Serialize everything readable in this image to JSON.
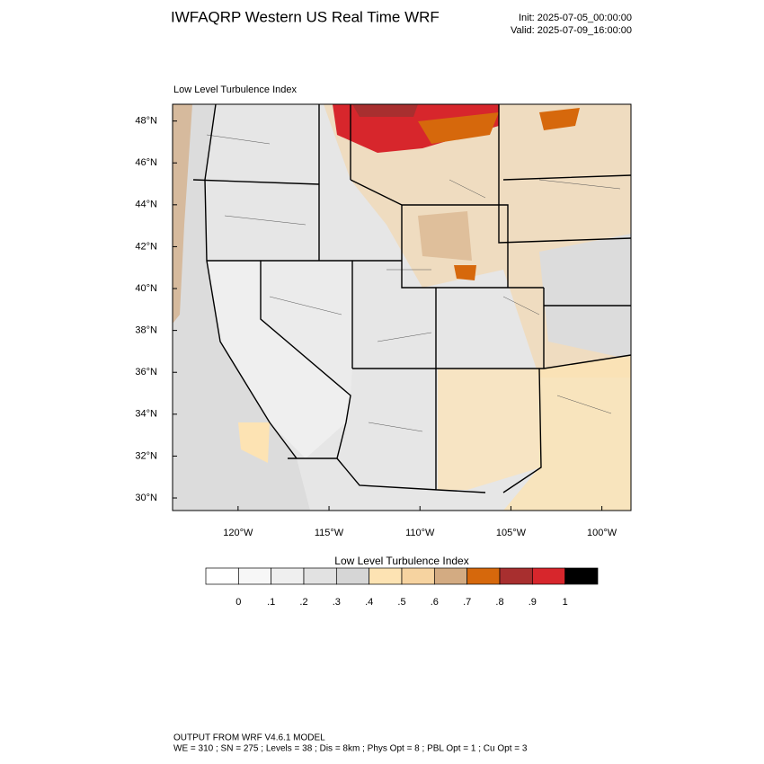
{
  "header": {
    "title": "IWFAQRP Western US Real Time WRF",
    "init": "Init: 2025-07-05_00:00:00",
    "valid": "Valid: 2025-07-09_16:00:00"
  },
  "map": {
    "subtitle": "Low Level Turbulence Index",
    "lon_range": [
      -123.6,
      -98.4
    ],
    "lat_range": [
      29.4,
      48.8
    ],
    "lon_ticks": [
      {
        "value": -120,
        "label": "120°W"
      },
      {
        "value": -115,
        "label": "115°W"
      },
      {
        "value": -110,
        "label": "110°W"
      },
      {
        "value": -105,
        "label": "105°W"
      },
      {
        "value": -100,
        "label": "100°W"
      }
    ],
    "lat_ticks": [
      {
        "value": 30,
        "label": "30°N"
      },
      {
        "value": 32,
        "label": "32°N"
      },
      {
        "value": 34,
        "label": "34°N"
      },
      {
        "value": 36,
        "label": "36°N"
      },
      {
        "value": 38,
        "label": "38°N"
      },
      {
        "value": 40,
        "label": "40°N"
      },
      {
        "value": 42,
        "label": "42°N"
      },
      {
        "value": 44,
        "label": "44°N"
      },
      {
        "value": 46,
        "label": "46°N"
      },
      {
        "value": 48,
        "label": "48°N"
      }
    ]
  },
  "colorbar": {
    "title": "Low Level Turbulence Index",
    "colors": [
      "#ffffff",
      "#f7f7f7",
      "#efefef",
      "#e2e2e2",
      "#d6d6d6",
      "#fde3b3",
      "#f6d3a0",
      "#d3ab82",
      "#d6680c",
      "#a82f2f",
      "#d7262c",
      "#000000"
    ],
    "ticks": [
      0,
      {
        "value": 0.1,
        "label": ".1"
      },
      {
        "value": 0.2,
        "label": ".2"
      },
      {
        "value": 0.3,
        "label": ".3"
      },
      {
        "value": 0.4,
        "label": ".4"
      },
      {
        "value": 0.5,
        "label": ".5"
      },
      {
        "value": 0.6,
        "label": ".6"
      },
      {
        "value": 0.7,
        "label": ".7"
      },
      {
        "value": 0.8,
        "label": ".8"
      },
      {
        "value": 0.9,
        "label": ".9"
      },
      1
    ]
  },
  "footer": {
    "line1": "OUTPUT FROM WRF V4.6.1 MODEL",
    "line2": "WE = 310 ; SN = 275 ; Levels = 38 ; Dis = 8km ; Phys Opt = 8 ; PBL Opt = 1 ; Cu Opt = 3"
  }
}
